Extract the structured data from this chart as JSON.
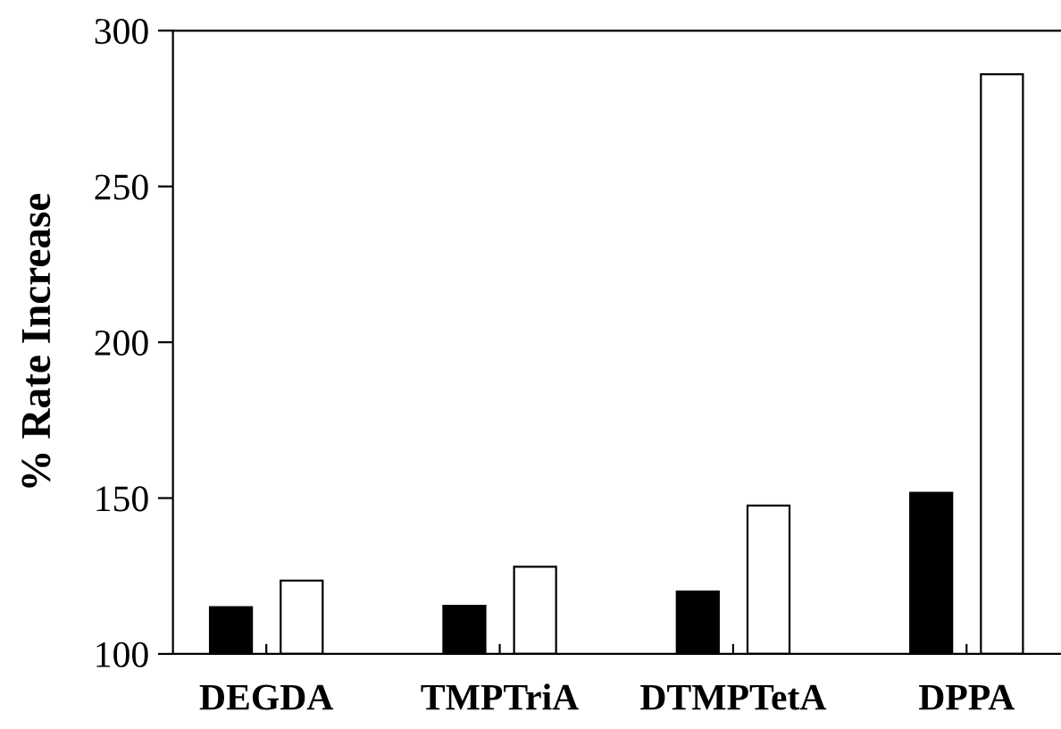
{
  "chart_data": {
    "type": "bar",
    "ylabel": "% Rate Increase",
    "categories": [
      "DEGDA",
      "TMPTriA",
      "DTMPTetA",
      "DPPA"
    ],
    "series": [
      {
        "color": "#000000",
        "values": [
          115,
          115.4,
          120,
          151.7
        ]
      },
      {
        "color": "#ffffff",
        "values": [
          123.5,
          128,
          147.6,
          286
        ]
      }
    ],
    "ylim": [
      100,
      300
    ],
    "yticks": [
      100,
      150,
      200,
      250,
      300
    ],
    "grid": false
  }
}
